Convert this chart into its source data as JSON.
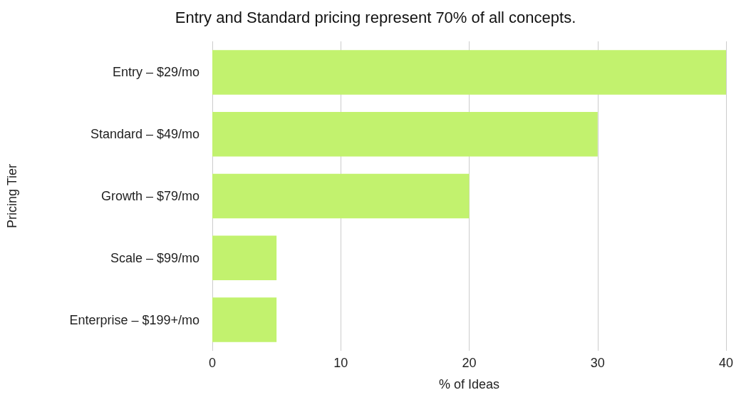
{
  "chart_data": {
    "type": "bar",
    "orientation": "horizontal",
    "title": "Entry and Standard pricing represent 70% of all concepts.",
    "xlabel": "% of Ideas",
    "ylabel": "Pricing Tier",
    "categories": [
      "Entry – $29/mo",
      "Standard – $49/mo",
      "Growth – $79/mo",
      "Scale – $99/mo",
      "Enterprise – $199+/mo"
    ],
    "values": [
      40,
      30,
      20,
      5,
      5
    ],
    "color": "#c2f26e",
    "xlim": [
      0,
      40
    ],
    "xticks": [
      0,
      10,
      20,
      30,
      40
    ],
    "grid": "x"
  }
}
